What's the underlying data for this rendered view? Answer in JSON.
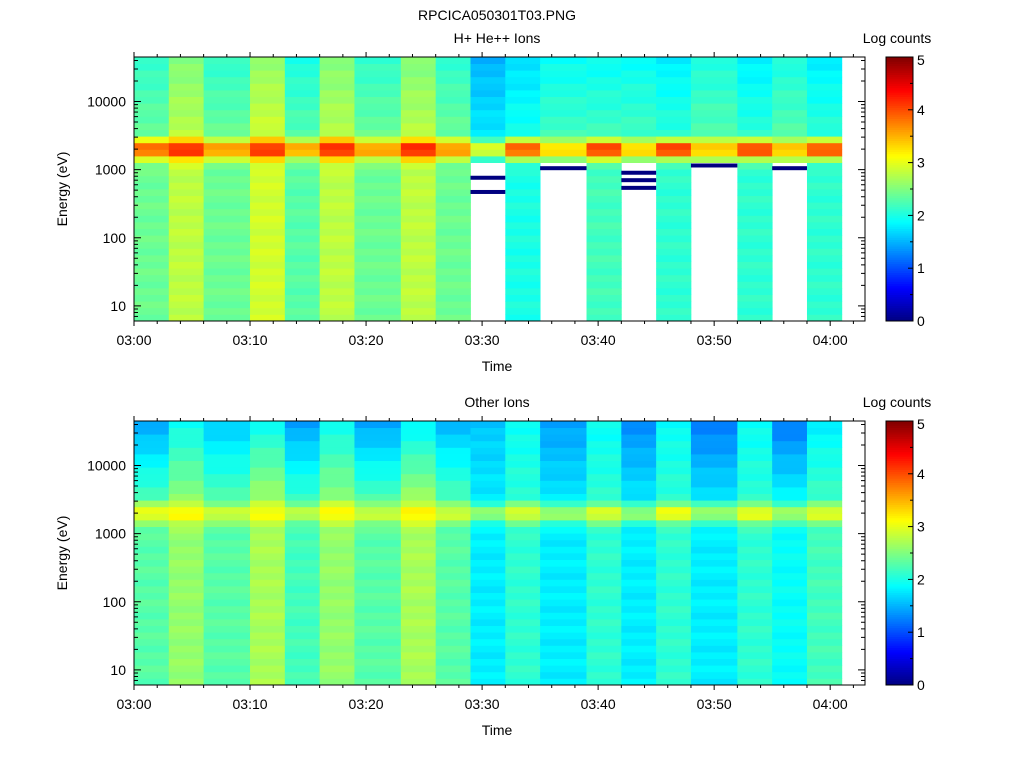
{
  "title": "RPCICA050301T03.PNG",
  "chart_data": [
    {
      "type": "heatmap",
      "title": "H+ He++ Ions",
      "xlabel": "Time",
      "ylabel": "Energy (eV)",
      "colorbar_label": "Log counts",
      "colorbar_ticks": [
        "0",
        "1",
        "2",
        "3",
        "4",
        "5"
      ],
      "clim": [
        0,
        5
      ],
      "xlim": [
        "03:00",
        "04:03"
      ],
      "x_ticks": [
        "03:00",
        "03:10",
        "03:20",
        "03:30",
        "03:40",
        "03:50",
        "04:00"
      ],
      "ylim": [
        6,
        45000
      ],
      "yscale": "log",
      "y_ticks": [
        "10",
        "100",
        "1000",
        "10000"
      ],
      "sweep_times": [
        "03:00",
        "03:03",
        "03:06",
        "03:10",
        "03:13",
        "03:16",
        "03:19",
        "03:23",
        "03:26",
        "03:29",
        "03:32",
        "03:35",
        "03:39",
        "03:42",
        "03:45",
        "03:48",
        "03:52",
        "03:55",
        "03:58"
      ],
      "sweep_end": "04:01",
      "base_level": [
        2.4,
        2.8,
        2.4,
        2.9,
        2.3,
        2.8,
        2.4,
        2.8,
        2.4,
        null,
        2.0,
        null,
        2.2,
        null,
        2.1,
        null,
        2.1,
        null,
        2.1
      ],
      "peak_level": [
        4.0,
        4.3,
        3.7,
        4.2,
        3.6,
        4.3,
        3.7,
        4.3,
        3.7,
        3.0,
        4.1,
        3.4,
        4.2,
        3.4,
        4.2,
        3.5,
        4.2,
        3.5,
        4.1
      ],
      "peak_energy_eV": 2000,
      "data_floor_eV": [
        6,
        6,
        6,
        6,
        6,
        6,
        6,
        6,
        6,
        1200,
        6,
        1150,
        6,
        1200,
        6,
        1150,
        6,
        1150,
        6
      ],
      "low_count_lines_eV": [
        [],
        [],
        [],
        [],
        [],
        [],
        [],
        [],
        [],
        [
          760,
          470
        ],
        [],
        [
          1050
        ],
        [],
        [
          900,
          700,
          540
        ],
        [],
        [
          1150
        ],
        [],
        [
          1050
        ],
        []
      ]
    },
    {
      "type": "heatmap",
      "title": "Other Ions",
      "xlabel": "Time",
      "ylabel": "Energy (eV)",
      "colorbar_label": "Log counts",
      "colorbar_ticks": [
        "0",
        "1",
        "2",
        "3",
        "4",
        "5"
      ],
      "clim": [
        0,
        5
      ],
      "xlim": [
        "03:00",
        "04:03"
      ],
      "x_ticks": [
        "03:00",
        "03:10",
        "03:20",
        "03:30",
        "03:40",
        "03:50",
        "04:00"
      ],
      "ylim": [
        6,
        45000
      ],
      "yscale": "log",
      "y_ticks": [
        "10",
        "100",
        "1000",
        "10000"
      ],
      "sweep_times": [
        "03:00",
        "03:03",
        "03:06",
        "03:10",
        "03:13",
        "03:16",
        "03:19",
        "03:23",
        "03:26",
        "03:29",
        "03:32",
        "03:35",
        "03:39",
        "03:42",
        "03:45",
        "03:48",
        "03:52",
        "03:55",
        "03:58"
      ],
      "sweep_end": "04:01",
      "base_level": [
        2.3,
        2.6,
        2.3,
        2.7,
        2.2,
        2.6,
        2.3,
        2.7,
        2.3,
        1.8,
        2.1,
        1.8,
        2.1,
        1.8,
        2.1,
        1.8,
        2.1,
        1.9,
        2.2
      ],
      "peak_level": [
        3.1,
        3.2,
        2.9,
        3.1,
        2.8,
        3.2,
        2.9,
        3.2,
        2.9,
        2.6,
        3.0,
        2.7,
        3.0,
        2.6,
        3.1,
        2.7,
        3.1,
        2.7,
        3.0
      ],
      "peak_energy_eV": 2000,
      "top_level": [
        1.4,
        1.9,
        1.6,
        1.9,
        1.4,
        1.9,
        1.4,
        1.8,
        1.5,
        1.6,
        1.9,
        1.4,
        1.9,
        1.3,
        1.9,
        1.2,
        1.9,
        1.2,
        1.8
      ],
      "data_floor_eV": [
        6,
        6,
        6,
        6,
        6,
        6,
        6,
        6,
        6,
        6,
        6,
        6,
        6,
        6,
        6,
        6,
        6,
        6,
        6
      ],
      "low_count_lines_eV": [
        [],
        [],
        [],
        [],
        [],
        [],
        [],
        [],
        [],
        [],
        [],
        [],
        [],
        [],
        [],
        [],
        [],
        [],
        []
      ]
    }
  ]
}
